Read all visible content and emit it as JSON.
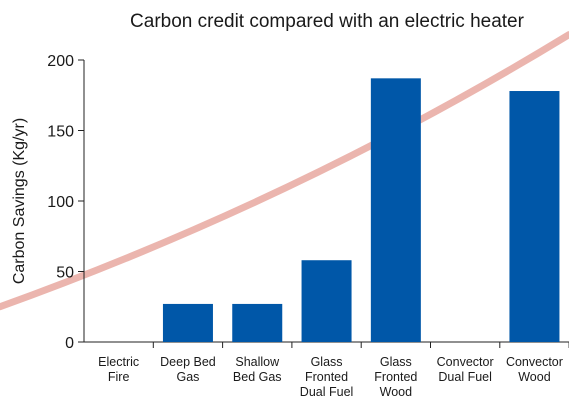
{
  "chart_data": {
    "type": "bar",
    "title": "Carbon credit compared with an electric heater",
    "xlabel": "",
    "ylabel": "Carbon Savings (Kg/yr)",
    "ylim": [
      0,
      200
    ],
    "yticks": [
      0,
      50,
      100,
      150,
      200
    ],
    "categories": [
      [
        "Electric",
        "Fire"
      ],
      [
        "Deep Bed",
        "Gas"
      ],
      [
        "Shallow",
        "Bed Gas"
      ],
      [
        "Glass",
        "Fronted",
        "Dual Fuel"
      ],
      [
        "Glass",
        "Fronted",
        "Wood"
      ],
      [
        "Convector",
        "Dual Fuel"
      ],
      [
        "Convector",
        "Wood"
      ]
    ],
    "values": [
      0,
      27,
      27,
      58,
      187,
      0,
      178
    ],
    "bar_color": "#0057a8",
    "grid": false,
    "legend": "none",
    "background_curve": {
      "description_color": "#e8a8a0",
      "y_at_left": 25,
      "y_at_right": 218
    }
  }
}
